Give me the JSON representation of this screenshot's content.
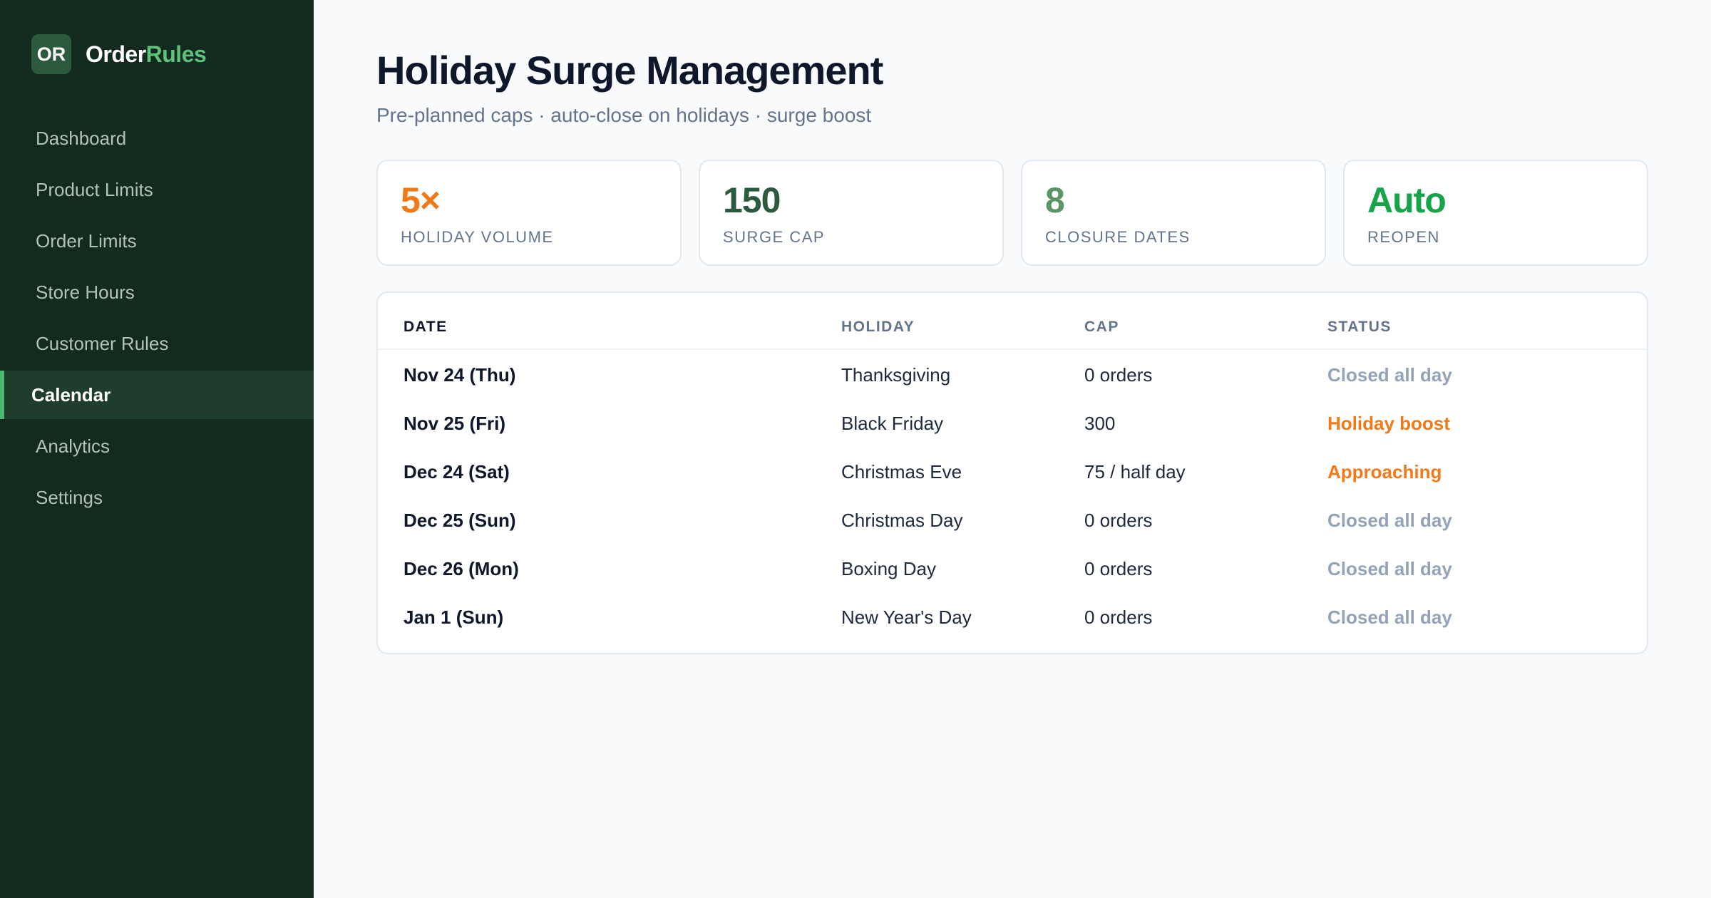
{
  "brand": {
    "badge": "OR",
    "name_main": "Order",
    "name_accent": "Rules"
  },
  "nav": [
    {
      "label": "Dashboard",
      "active": false
    },
    {
      "label": "Product Limits",
      "active": false
    },
    {
      "label": "Order Limits",
      "active": false
    },
    {
      "label": "Store Hours",
      "active": false
    },
    {
      "label": "Customer Rules",
      "active": false
    },
    {
      "label": "Calendar",
      "active": true
    },
    {
      "label": "Analytics",
      "active": false
    },
    {
      "label": "Settings",
      "active": false
    }
  ],
  "header": {
    "title": "Holiday Surge Management",
    "subtitle": "Pre-planned caps · auto-close on holidays · surge boost"
  },
  "stats": [
    {
      "value": "5×",
      "label": "HOLIDAY VOLUME",
      "color": "#f07a1a"
    },
    {
      "value": "150",
      "label": "SURGE CAP",
      "color": "#2c5a3f"
    },
    {
      "value": "8",
      "label": "CLOSURE DATES",
      "color": "#5b9466"
    },
    {
      "value": "Auto",
      "label": "REOPEN",
      "color": "#16a34a"
    }
  ],
  "table": {
    "columns": [
      "DATE",
      "HOLIDAY",
      "CAP",
      "STATUS"
    ],
    "rows": [
      {
        "date": "Nov 24 (Thu)",
        "holiday": "Thanksgiving",
        "cap": "0 orders",
        "status": "Closed all day",
        "status_color": "#94a3b8"
      },
      {
        "date": "Nov 25 (Fri)",
        "holiday": "Black Friday",
        "cap": "300",
        "status": "Holiday boost",
        "status_color": "#f07a1a"
      },
      {
        "date": "Dec 24 (Sat)",
        "holiday": "Christmas Eve",
        "cap": "75 / half day",
        "status": "Approaching",
        "status_color": "#f07a1a"
      },
      {
        "date": "Dec 25 (Sun)",
        "holiday": "Christmas Day",
        "cap": "0 orders",
        "status": "Closed all day",
        "status_color": "#94a3b8"
      },
      {
        "date": "Dec 26 (Mon)",
        "holiday": "Boxing Day",
        "cap": "0 orders",
        "status": "Closed all day",
        "status_color": "#94a3b8"
      },
      {
        "date": "Jan 1 (Sun)",
        "holiday": "New Year's Day",
        "cap": "0 orders",
        "status": "Closed all day",
        "status_color": "#94a3b8"
      }
    ]
  }
}
